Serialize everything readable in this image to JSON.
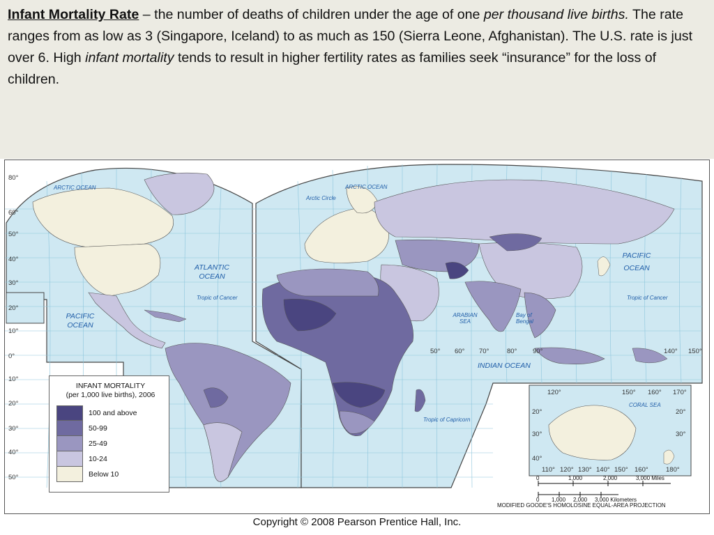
{
  "header": {
    "term": "Infant Mortality Rate",
    "part1": " – the number of deaths of children under the age of one ",
    "italic1": "per thousand live births.",
    "part2": " The rate ranges from as low as 3 (Singapore, Iceland) to as much as 150 (Sierra Leone, Afghanistan). The U.S. rate is just over 6. High ",
    "italic2": "infant mortality",
    "part3": " tends to result in higher fertility rates as families seek “insurance” for the loss of children."
  },
  "legend": {
    "title_line1": "INFANT MORTALITY",
    "title_line2": "(per 1,000 live births), 2006",
    "items": [
      {
        "label": "100 and above",
        "color": "#4a4580"
      },
      {
        "label": "50-99",
        "color": "#6f6aa0"
      },
      {
        "label": "25-49",
        "color": "#9a96c0"
      },
      {
        "label": "10-24",
        "color": "#c9c6e0"
      },
      {
        "label": "Below 10",
        "color": "#f3f0de"
      }
    ]
  },
  "map_labels": {
    "arctic_ocean_w": "ARCTIC OCEAN",
    "arctic_ocean_e": "ARCTIC OCEAN",
    "arctic_circle": "Arctic Circle",
    "atlantic_ocean": "ATLANTIC OCEAN",
    "pacific_ocean_w": "PACIFIC OCEAN",
    "pacific_ocean_e": "PACIFIC OCEAN",
    "indian_ocean": "INDIAN OCEAN",
    "tropic_cancer_w": "Tropic of Cancer",
    "tropic_cancer_e": "Tropic of Cancer",
    "tropic_capricorn": "Tropic of Capricorn",
    "arabian_sea": "ARABIAN SEA",
    "bay_of_bengal": "Bay of Bengal",
    "coral_sea": "CORAL SEA"
  },
  "latitudes_left": [
    "80°",
    "60°",
    "50°",
    "40°",
    "30°",
    "20°",
    "10°",
    "0°",
    "10°",
    "20°",
    "30°",
    "40°",
    "50°"
  ],
  "longitudes_bottom": [
    "50°",
    "60°",
    "70°",
    "80°",
    "90°",
    "140°",
    "150°"
  ],
  "inset": {
    "top_degrees": [
      "120°",
      "150°",
      "160°",
      "170°"
    ],
    "bottom_degrees": [
      "110°",
      "120°",
      "130°",
      "140°",
      "150°",
      "160°",
      "180°"
    ],
    "lat_left": [
      "20°",
      "30°",
      "40°"
    ],
    "lat_right": [
      "20°",
      "30°"
    ]
  },
  "scale": {
    "miles_labels": [
      "0",
      "1,000",
      "2,000",
      "3,000 Miles"
    ],
    "km_labels": [
      "0",
      "1,000",
      "2,000",
      "3,000 Kilometers"
    ],
    "projection": "MODIFIED GOODE'S HOMOLOSINE EQUAL-AREA PROJECTION"
  },
  "copyright": "Copyright © 2008 Pearson Prentice Hall, Inc.",
  "colors": {
    "ocean": "#cfe8f2",
    "grid": "#8cc5dc",
    "label_blue": "#1f5da8"
  }
}
